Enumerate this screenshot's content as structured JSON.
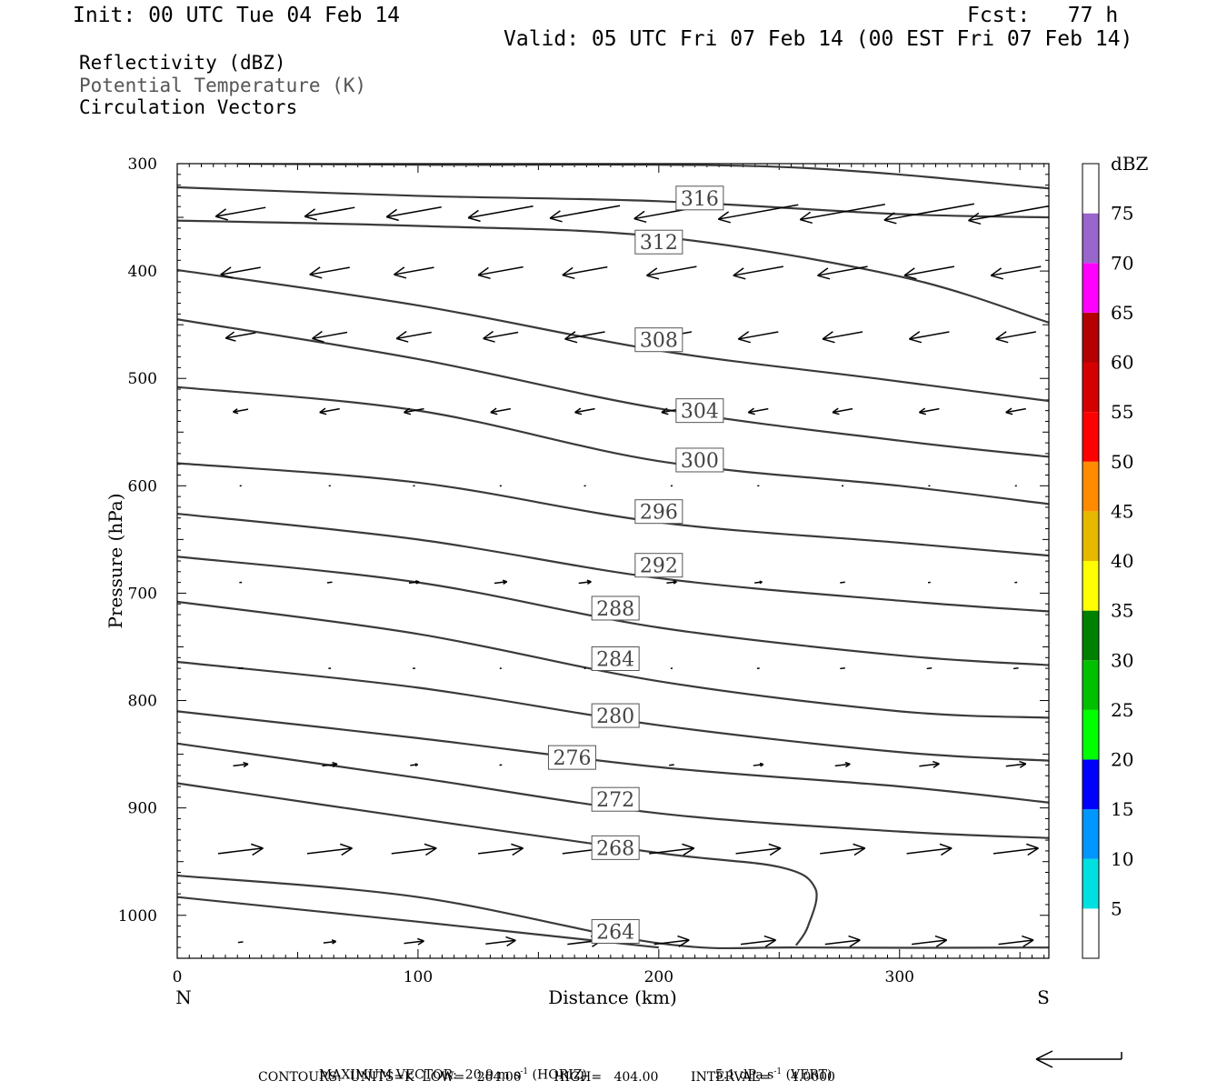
{
  "header": {
    "init": "Init: 00 UTC Tue 04 Feb 14",
    "fcst": "Fcst:   77 h",
    "valid": "Valid: 05 UTC Fri 07 Feb 14 (00 EST Fri 07 Feb 14)"
  },
  "fields": [
    {
      "label": "Reflectivity (dBZ)",
      "color": "#000000"
    },
    {
      "label": "Potential Temperature (K)",
      "color": "#555555"
    },
    {
      "label": "Circulation Vectors",
      "color": "#000000"
    }
  ],
  "footer": {
    "max_vector_prefix": "MAXIMUM VECTOR:  20.9 m s",
    "max_vector_horiz": " (HORIZ)",
    "max_vector_vert_prefix": "5.1 dPa s",
    "max_vector_vert": " (VERT)",
    "exponent": "-1",
    "contours": "CONTOURS:  UNITS=K  LOW=   264.00        HIGH=   404.00        INTERVAL=     4.0000"
  },
  "chart_data": {
    "type": "cross-section contour + vector",
    "xlabel": "Distance (km)",
    "ylabel": "Pressure (hPa)",
    "xlim": [
      0,
      362
    ],
    "ylim": [
      1040,
      300
    ],
    "x_ticks": [
      0,
      100,
      200,
      300
    ],
    "y_ticks": [
      300,
      400,
      500,
      600,
      700,
      800,
      900,
      1000
    ],
    "x_end_labels": {
      "left": "N",
      "right": "S"
    },
    "colorbar": {
      "unit": "dBZ",
      "ticks": [
        "5",
        "10",
        "15",
        "20",
        "25",
        "30",
        "35",
        "40",
        "45",
        "50",
        "55",
        "60",
        "65",
        "70",
        "75"
      ],
      "colors": [
        "#ffffff",
        "#00e0e0",
        "#0096ff",
        "#0000ff",
        "#00ff00",
        "#00c000",
        "#008000",
        "#ffff00",
        "#e6b800",
        "#ff8c00",
        "#ff0000",
        "#d40000",
        "#b40000",
        "#ff00ff",
        "#9966cc",
        "#ffffff"
      ]
    },
    "theta_contours": [
      {
        "label": "316",
        "points": [
          [
            25,
            300
          ],
          [
            100,
            301
          ],
          [
            250,
            303
          ],
          [
            362,
            323
          ]
        ]
      },
      {
        "label": "",
        "points": [
          [
            0,
            322
          ],
          [
            100,
            330
          ],
          [
            200,
            335
          ],
          [
            300,
            347
          ],
          [
            362,
            350
          ]
        ]
      },
      {
        "label": "312",
        "points": [
          [
            0,
            353
          ],
          [
            100,
            358
          ],
          [
            200,
            368
          ],
          [
            300,
            405
          ],
          [
            362,
            448
          ]
        ]
      },
      {
        "label": "308",
        "points": [
          [
            0,
            399
          ],
          [
            100,
            432
          ],
          [
            200,
            474
          ],
          [
            290,
            500
          ],
          [
            362,
            521
          ]
        ]
      },
      {
        "label": "304",
        "points": [
          [
            0,
            445
          ],
          [
            100,
            482
          ],
          [
            200,
            528
          ],
          [
            300,
            558
          ],
          [
            362,
            573
          ]
        ]
      },
      {
        "label": "300",
        "points": [
          [
            0,
            508
          ],
          [
            100,
            530
          ],
          [
            200,
            577
          ],
          [
            300,
            600
          ],
          [
            362,
            617
          ]
        ]
      },
      {
        "label": "296",
        "points": [
          [
            0,
            579
          ],
          [
            100,
            597
          ],
          [
            200,
            634
          ],
          [
            300,
            653
          ],
          [
            362,
            665
          ]
        ]
      },
      {
        "label": "292",
        "points": [
          [
            0,
            626
          ],
          [
            100,
            650
          ],
          [
            200,
            686
          ],
          [
            300,
            707
          ],
          [
            362,
            717
          ]
        ]
      },
      {
        "label": "288",
        "points": [
          [
            0,
            666
          ],
          [
            100,
            690
          ],
          [
            200,
            732
          ],
          [
            300,
            758
          ],
          [
            362,
            767
          ]
        ]
      },
      {
        "label": "284",
        "points": [
          [
            0,
            708
          ],
          [
            100,
            738
          ],
          [
            200,
            782
          ],
          [
            300,
            810
          ],
          [
            362,
            816
          ]
        ]
      },
      {
        "label": "280",
        "points": [
          [
            0,
            764
          ],
          [
            100,
            788
          ],
          [
            200,
            823
          ],
          [
            300,
            848
          ],
          [
            362,
            856
          ]
        ]
      },
      {
        "label": "276",
        "points": [
          [
            0,
            810
          ],
          [
            100,
            835
          ],
          [
            200,
            862
          ],
          [
            300,
            880
          ],
          [
            362,
            895
          ]
        ]
      },
      {
        "label": "272",
        "points": [
          [
            0,
            840
          ],
          [
            100,
            872
          ],
          [
            200,
            905
          ],
          [
            300,
            922
          ],
          [
            362,
            928
          ]
        ]
      },
      {
        "label": "268",
        "points": [
          [
            0,
            877
          ],
          [
            100,
            910
          ],
          [
            200,
            942
          ],
          [
            250,
            955
          ],
          [
            265,
            975
          ],
          [
            262,
            1010
          ],
          [
            257,
            1028
          ]
        ]
      },
      {
        "label": "264",
        "points": [
          [
            0,
            963
          ],
          [
            100,
            983
          ],
          [
            200,
            1026
          ],
          [
            260,
            1030
          ],
          [
            362,
            1030
          ]
        ]
      },
      {
        "label": "",
        "points": [
          [
            0,
            983
          ],
          [
            100,
            1006
          ],
          [
            200,
            1030
          ]
        ]
      }
    ],
    "vectors": {
      "note": "horizontal circulation vectors, direction sign: negative = toward N",
      "x": [
        15,
        52,
        87,
        123,
        158,
        194,
        230,
        265,
        301,
        337
      ],
      "levels": [
        {
          "p": 345,
          "u": [
            -1.0,
            -1.0,
            -1.1,
            -1.3,
            -1.4,
            -1.5,
            -1.6,
            -1.7,
            -1.8,
            -1.9
          ]
        },
        {
          "p": 400,
          "u": [
            -0.8,
            -0.8,
            -0.8,
            -0.9,
            -0.9,
            -1.0,
            -1.0,
            -1.0,
            -1.0,
            -1.0
          ]
        },
        {
          "p": 460,
          "u": [
            -0.6,
            -0.7,
            -0.7,
            -0.7,
            -0.8,
            -0.8,
            -0.8,
            -0.8,
            -0.8,
            -0.8
          ]
        },
        {
          "p": 530,
          "u": [
            -0.3,
            -0.4,
            -0.4,
            -0.4,
            -0.4,
            -0.4,
            -0.4,
            -0.4,
            -0.4,
            -0.4
          ]
        },
        {
          "p": 600,
          "u": [
            0.0,
            0.0,
            0.0,
            0.0,
            0.0,
            0.0,
            0.0,
            0.0,
            0.0,
            0.0
          ]
        },
        {
          "p": 690,
          "u": [
            0.05,
            0.1,
            0.2,
            0.25,
            0.25,
            0.2,
            0.15,
            0.1,
            0.05,
            0.05
          ]
        },
        {
          "p": 770,
          "u": [
            0.1,
            0.05,
            0.05,
            0.0,
            0.0,
            0.0,
            0.05,
            0.1,
            0.1,
            0.1
          ]
        },
        {
          "p": 860,
          "u": [
            0.3,
            0.3,
            0.15,
            0.05,
            0.05,
            0.1,
            0.2,
            0.3,
            0.4,
            0.4
          ]
        },
        {
          "p": 940,
          "u": [
            0.9,
            0.9,
            0.9,
            0.9,
            0.9,
            0.9,
            0.9,
            0.9,
            0.9,
            0.9
          ]
        },
        {
          "p": 1025,
          "u": [
            0.1,
            0.25,
            0.4,
            0.6,
            0.7,
            0.7,
            0.7,
            0.7,
            0.7,
            0.7
          ]
        }
      ]
    }
  }
}
